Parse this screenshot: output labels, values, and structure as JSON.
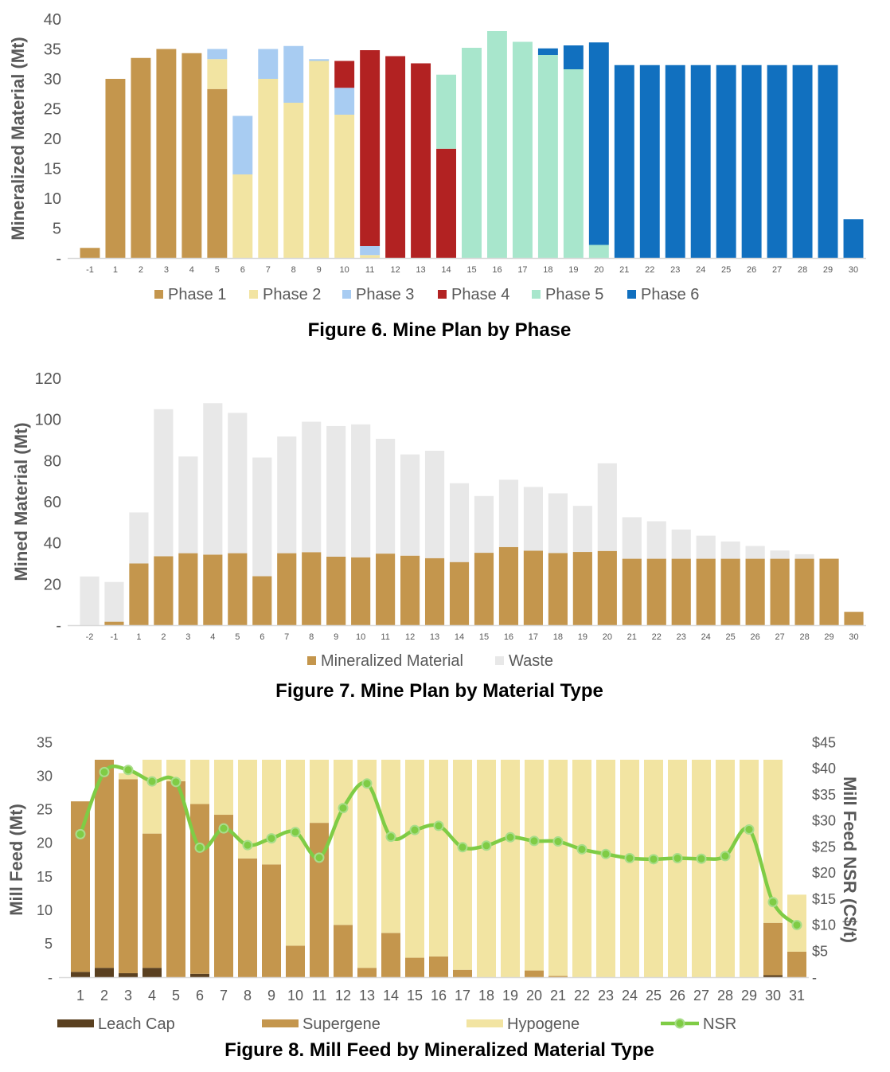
{
  "chart_data": [
    {
      "type": "bar",
      "stacked": true,
      "title": "Figure 6. Mine Plan by Phase",
      "ylabel": "Mineralized Material (Mt)",
      "ylim": [
        0,
        40
      ],
      "yticks": [
        "-",
        "5",
        "10",
        "15",
        "20",
        "25",
        "30",
        "35",
        "40"
      ],
      "grid": false,
      "legend_position": "bottom",
      "categories": [
        "-1",
        "1",
        "2",
        "3",
        "4",
        "5",
        "6",
        "7",
        "8",
        "9",
        "10",
        "11",
        "12",
        "13",
        "14",
        "15",
        "16",
        "17",
        "18",
        "19",
        "20",
        "21",
        "22",
        "23",
        "24",
        "25",
        "26",
        "27",
        "28",
        "29",
        "30"
      ],
      "series": [
        {
          "name": "Phase 1",
          "color": "#C4964D",
          "values": [
            1.7,
            30,
            33.5,
            35,
            34.3,
            28.3,
            0,
            0,
            0,
            0,
            0,
            0,
            0,
            0,
            0,
            0,
            0,
            0,
            0,
            0,
            0,
            0,
            0,
            0,
            0,
            0,
            0,
            0,
            0,
            0,
            0
          ]
        },
        {
          "name": "Phase 2",
          "color": "#F2E4A2",
          "values": [
            0,
            0,
            0,
            0,
            0,
            5,
            14,
            30,
            26,
            33,
            24,
            0.5,
            0,
            0,
            0,
            0,
            0,
            0,
            0,
            0,
            0,
            0,
            0,
            0,
            0,
            0,
            0,
            0,
            0,
            0,
            0
          ]
        },
        {
          "name": "Phase 3",
          "color": "#A8CCF2",
          "values": [
            0,
            0,
            0,
            0,
            0,
            1.7,
            9.8,
            5,
            9.5,
            0.3,
            4.5,
            1.5,
            0,
            0,
            0,
            0,
            0,
            0,
            0,
            0,
            0,
            0,
            0,
            0,
            0,
            0,
            0,
            0,
            0,
            0,
            0
          ]
        },
        {
          "name": "Phase 4",
          "color": "#B22222",
          "values": [
            0,
            0,
            0,
            0,
            0,
            0,
            0,
            0,
            0,
            0,
            4.5,
            32.8,
            33.8,
            32.6,
            18.3,
            0,
            0,
            0,
            0,
            0,
            0,
            0,
            0,
            0,
            0,
            0,
            0,
            0,
            0,
            0,
            0
          ]
        },
        {
          "name": "Phase 5",
          "color": "#A8E6CC",
          "values": [
            0,
            0,
            0,
            0,
            0,
            0,
            0,
            0,
            0,
            0,
            0,
            0,
            0,
            0,
            12.4,
            35.2,
            38,
            36.2,
            34,
            31.6,
            2.2,
            0,
            0,
            0,
            0,
            0,
            0,
            0,
            0,
            0,
            0
          ]
        },
        {
          "name": "Phase 6",
          "color": "#1170BF",
          "values": [
            0,
            0,
            0,
            0,
            0,
            0,
            0,
            0,
            0,
            0,
            0,
            0,
            0,
            0,
            0,
            0,
            0,
            0,
            1.1,
            4,
            33.9,
            32.3,
            32.3,
            32.3,
            32.3,
            32.3,
            32.3,
            32.3,
            32.3,
            32.3,
            6.5
          ]
        }
      ]
    },
    {
      "type": "bar",
      "stacked": true,
      "title": "Figure 7. Mine Plan by Material Type",
      "ylabel": "Mined Material (Mt)",
      "ylim": [
        0,
        120
      ],
      "yticks": [
        "-",
        "20",
        "40",
        "60",
        "80",
        "100",
        "120"
      ],
      "grid": false,
      "legend_position": "bottom",
      "categories": [
        "-2",
        "-1",
        "1",
        "2",
        "3",
        "4",
        "5",
        "6",
        "7",
        "8",
        "9",
        "10",
        "11",
        "12",
        "13",
        "14",
        "15",
        "16",
        "17",
        "18",
        "19",
        "20",
        "21",
        "22",
        "23",
        "24",
        "25",
        "26",
        "27",
        "28",
        "29",
        "30"
      ],
      "series": [
        {
          "name": "Mineralized Material",
          "color": "#C4964D",
          "values": [
            0,
            1.7,
            30,
            33.5,
            35,
            34.3,
            35,
            23.8,
            35,
            35.5,
            33.3,
            33,
            34.8,
            33.8,
            32.6,
            30.7,
            35.2,
            38,
            36.2,
            35.1,
            35.6,
            36.1,
            32.3,
            32.3,
            32.3,
            32.3,
            32.3,
            32.3,
            32.3,
            32.3,
            32.3,
            6.5
          ]
        },
        {
          "name": "Waste",
          "color": "#E8E8E8",
          "values": [
            23.7,
            19.3,
            24.8,
            71.5,
            47,
            73.6,
            68.2,
            57.7,
            56.7,
            63.4,
            63.5,
            64.6,
            55.8,
            49.2,
            52.2,
            38.3,
            27.6,
            32.7,
            31,
            29,
            22.4,
            42.6,
            20.2,
            18.2,
            14.2,
            11.2,
            8.4,
            6.2,
            4,
            2.2,
            0,
            0
          ]
        }
      ]
    },
    {
      "type": "bar+line",
      "stacked": true,
      "title": "Figure 8. Mill Feed by Mineralized Material Type",
      "ylabel": "Mill Feed (Mt)",
      "y2label": "Mill Feed NSR (C$/t)",
      "ylim": [
        0,
        35
      ],
      "y2lim": [
        0,
        45
      ],
      "yticks": [
        "-",
        "5",
        "10",
        "15",
        "20",
        "25",
        "30",
        "35"
      ],
      "y2ticks": [
        "-",
        "$5",
        "$10",
        "$15",
        "$20",
        "$25",
        "$30",
        "$35",
        "$40",
        "$45"
      ],
      "grid": false,
      "legend_position": "bottom",
      "categories": [
        "1",
        "2",
        "3",
        "4",
        "5",
        "6",
        "7",
        "8",
        "9",
        "10",
        "11",
        "12",
        "13",
        "14",
        "15",
        "16",
        "17",
        "18",
        "19",
        "20",
        "21",
        "22",
        "23",
        "24",
        "25",
        "26",
        "27",
        "28",
        "29",
        "30",
        "31"
      ],
      "series": [
        {
          "name": "Leach Cap",
          "color": "#5A4020",
          "values": [
            0.8,
            1.4,
            0.6,
            1.4,
            0,
            0.5,
            0,
            0,
            0,
            0,
            0,
            0,
            0,
            0,
            0,
            0,
            0,
            0,
            0,
            0,
            0,
            0,
            0,
            0,
            0,
            0,
            0,
            0,
            0,
            0.3,
            0
          ]
        },
        {
          "name": "Supergene",
          "color": "#C4964D",
          "values": [
            25.4,
            31,
            28.9,
            20,
            29.2,
            25.3,
            24.2,
            17.7,
            16.8,
            4.7,
            23,
            7.8,
            1.4,
            6.6,
            2.9,
            3.1,
            1.1,
            0,
            0,
            1,
            0.2,
            0,
            0,
            0,
            0,
            0,
            0,
            0,
            0,
            7.8,
            3.8
          ]
        },
        {
          "name": "Hypogene",
          "color": "#F2E4A2",
          "values": [
            0,
            0,
            0.9,
            11,
            3.2,
            6.6,
            8.2,
            14.7,
            15.6,
            27.7,
            9.4,
            24.6,
            31,
            25.8,
            29.5,
            29.3,
            31.3,
            32.4,
            32.4,
            31.4,
            32.2,
            32.4,
            32.4,
            32.4,
            32.4,
            32.4,
            32.4,
            32.4,
            32.4,
            24.3,
            8.5
          ]
        },
        {
          "name": "NSR",
          "color": "#7FCC45",
          "axis": "right",
          "line": true,
          "values": [
            27.4,
            39.3,
            39.7,
            37.5,
            37.4,
            24.8,
            28.5,
            25.3,
            26.6,
            27.8,
            22.9,
            32.4,
            37.1,
            26.9,
            28.2,
            29,
            24.9,
            25.2,
            26.8,
            26.1,
            26,
            24.5,
            23.6,
            22.8,
            22.6,
            22.8,
            22.7,
            23.2,
            28.3,
            14.4,
            10
          ]
        }
      ]
    }
  ]
}
